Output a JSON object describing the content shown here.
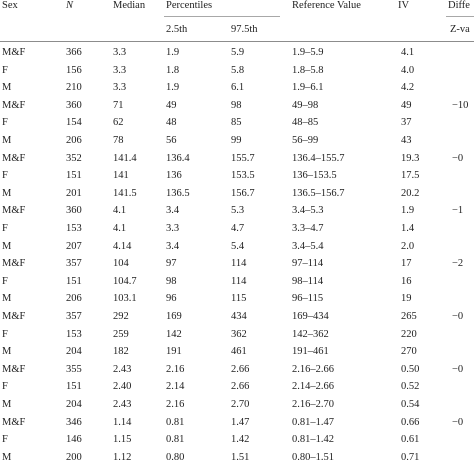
{
  "headers": {
    "sex": "Sex",
    "n": "N",
    "median": "Median",
    "percentiles": "Percentiles",
    "p25": "2.5th",
    "p975": "97.5th",
    "reference": "Reference Value",
    "iv": "IV",
    "difference": "Diffe",
    "zvalue": "Z-va"
  },
  "rows": [
    {
      "sex": "M&F",
      "n": "366",
      "median": "3.3",
      "p25": "1.9",
      "p975": "5.9",
      "ref": "1.9–5.9",
      "iv": "4.1",
      "diff": ""
    },
    {
      "sex": "F",
      "n": "156",
      "median": "3.3",
      "p25": "1.8",
      "p975": "5.8",
      "ref": "1.8–5.8",
      "iv": "4.0",
      "diff": ""
    },
    {
      "sex": "M",
      "n": "210",
      "median": "3.3",
      "p25": "1.9",
      "p975": "6.1",
      "ref": "1.9–6.1",
      "iv": "4.2",
      "diff": ""
    },
    {
      "sex": "M&F",
      "n": "360",
      "median": "71",
      "p25": "49",
      "p975": "98",
      "ref": "49–98",
      "iv": "49",
      "diff": "−10"
    },
    {
      "sex": "F",
      "n": "154",
      "median": "62",
      "p25": "48",
      "p975": "85",
      "ref": "48–85",
      "iv": "37",
      "diff": ""
    },
    {
      "sex": "M",
      "n": "206",
      "median": "78",
      "p25": "56",
      "p975": "99",
      "ref": "56–99",
      "iv": "43",
      "diff": ""
    },
    {
      "sex": "M&F",
      "n": "352",
      "median": "141.4",
      "p25": "136.4",
      "p975": "155.7",
      "ref": "136.4–155.7",
      "iv": "19.3",
      "diff": "−0"
    },
    {
      "sex": "F",
      "n": "151",
      "median": "141",
      "p25": "136",
      "p975": "153.5",
      "ref": "136–153.5",
      "iv": "17.5",
      "diff": ""
    },
    {
      "sex": "M",
      "n": "201",
      "median": "141.5",
      "p25": "136.5",
      "p975": "156.7",
      "ref": "136.5–156.7",
      "iv": "20.2",
      "diff": ""
    },
    {
      "sex": "M&F",
      "n": "360",
      "median": "4.1",
      "p25": "3.4",
      "p975": "5.3",
      "ref": "3.4–5.3",
      "iv": "1.9",
      "diff": "−1"
    },
    {
      "sex": "F",
      "n": "153",
      "median": "4.1",
      "p25": "3.3",
      "p975": "4.7",
      "ref": "3.3–4.7",
      "iv": "1.4",
      "diff": ""
    },
    {
      "sex": "M",
      "n": "207",
      "median": "4.14",
      "p25": "3.4",
      "p975": "5.4",
      "ref": "3.4–5.4",
      "iv": "2.0",
      "diff": ""
    },
    {
      "sex": "M&F",
      "n": "357",
      "median": "104",
      "p25": "97",
      "p975": "114",
      "ref": "97–114",
      "iv": "17",
      "diff": "−2"
    },
    {
      "sex": "F",
      "n": "151",
      "median": "104.7",
      "p25": "98",
      "p975": "114",
      "ref": "98–114",
      "iv": "16",
      "diff": ""
    },
    {
      "sex": "M",
      "n": "206",
      "median": "103.1",
      "p25": "96",
      "p975": "115",
      "ref": "96–115",
      "iv": "19",
      "diff": ""
    },
    {
      "sex": "M&F",
      "n": "357",
      "median": "292",
      "p25": "169",
      "p975": "434",
      "ref": "169–434",
      "iv": "265",
      "diff": "−0"
    },
    {
      "sex": "F",
      "n": "153",
      "median": "259",
      "p25": "142",
      "p975": "362",
      "ref": "142–362",
      "iv": "220",
      "diff": ""
    },
    {
      "sex": "M",
      "n": "204",
      "median": "182",
      "p25": "191",
      "p975": "461",
      "ref": "191–461",
      "iv": "270",
      "diff": ""
    },
    {
      "sex": "M&F",
      "n": "355",
      "median": "2.43",
      "p25": "2.16",
      "p975": "2.66",
      "ref": "2.16–2.66",
      "iv": "0.50",
      "diff": "−0"
    },
    {
      "sex": "F",
      "n": "151",
      "median": "2.40",
      "p25": "2.14",
      "p975": "2.66",
      "ref": "2.14–2.66",
      "iv": "0.52",
      "diff": ""
    },
    {
      "sex": "M",
      "n": "204",
      "median": "2.43",
      "p25": "2.16",
      "p975": "2.70",
      "ref": "2.16–2.70",
      "iv": "0.54",
      "diff": ""
    },
    {
      "sex": "M&F",
      "n": "346",
      "median": "1.14",
      "p25": "0.81",
      "p975": "1.47",
      "ref": "0.81–1.47",
      "iv": "0.66",
      "diff": "−0"
    },
    {
      "sex": "F",
      "n": "146",
      "median": "1.15",
      "p25": "0.81",
      "p975": "1.42",
      "ref": "0.81–1.42",
      "iv": "0.61",
      "diff": ""
    },
    {
      "sex": "M",
      "n": "200",
      "median": "1.12",
      "p25": "0.80",
      "p975": "1.51",
      "ref": "0.80–1.51",
      "iv": "0.71",
      "diff": ""
    }
  ]
}
